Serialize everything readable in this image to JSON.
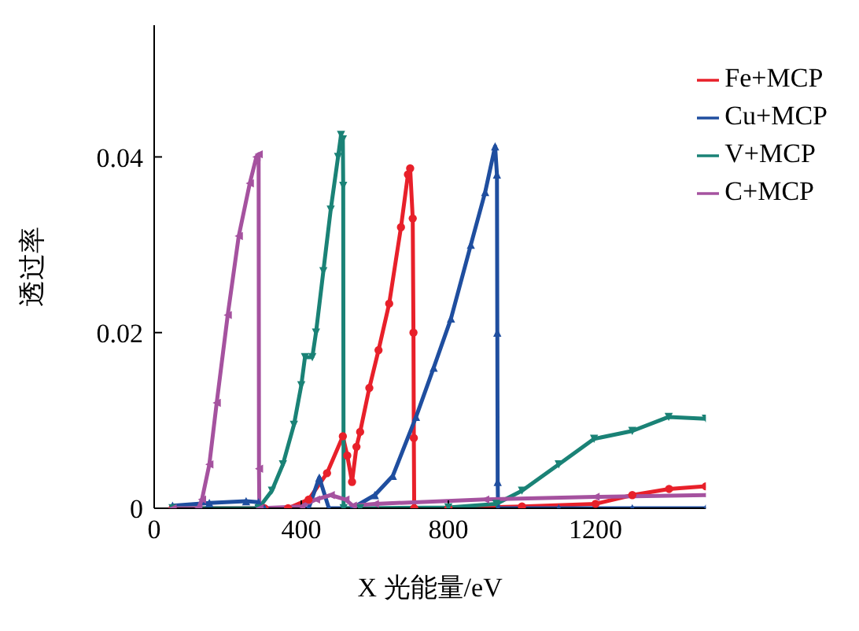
{
  "chart_data": {
    "type": "line",
    "xlabel": "X 光能量/eV",
    "ylabel": "透过率",
    "xlim": [
      0,
      1500
    ],
    "xticks": [
      0,
      400,
      800,
      1200
    ],
    "ylim": [
      0,
      0.055
    ],
    "yticks": [
      0,
      0.02,
      0.04
    ],
    "legend": "top right",
    "line_style": "solid",
    "series": [
      {
        "name": "Fe+MCP",
        "color": "#e8202a",
        "marker": "circle",
        "x": [
          50,
          300,
          364,
          420,
          470,
          513,
          525,
          538,
          550,
          560,
          585,
          610,
          639,
          671,
          690,
          696,
          703,
          705,
          706,
          707,
          800,
          1000,
          1200,
          1300,
          1400,
          1500
        ],
        "values": [
          0,
          0,
          0,
          0.001,
          0.004,
          0.0082,
          0.006,
          0.003,
          0.007,
          0.0087,
          0.0137,
          0.018,
          0.0233,
          0.032,
          0.038,
          0.0387,
          0.033,
          0.02,
          0.008,
          0,
          0,
          0.0002,
          0.0005,
          0.0015,
          0.0022,
          0.0025
        ]
      },
      {
        "name": "Cu+MCP",
        "color": "#1f4e9f",
        "marker": "triangle",
        "x": [
          50,
          150,
          250,
          284,
          300,
          420,
          449,
          475,
          538,
          600,
          649,
          712,
          760,
          807,
          861,
          900,
          927,
          932,
          933,
          934,
          935,
          1100,
          1300,
          1500
        ],
        "values": [
          0.0003,
          0.0006,
          0.0008,
          0.0007,
          0,
          0,
          0.0035,
          0,
          0,
          0.0015,
          0.0037,
          0.0104,
          0.016,
          0.0216,
          0.03,
          0.036,
          0.0412,
          0.038,
          0.02,
          0.003,
          0,
          0,
          0,
          0
        ]
      },
      {
        "name": "V+MCP",
        "color": "#1a8276",
        "marker": "triangle-down",
        "x": [
          50,
          284,
          320,
          350,
          380,
          400,
          410,
          430,
          440,
          460,
          480,
          500,
          508,
          513,
          514,
          515,
          560,
          800,
          930,
          1000,
          1100,
          1196,
          1300,
          1399,
          1500
        ],
        "values": [
          0,
          0,
          0.002,
          0.005,
          0.0095,
          0.014,
          0.0172,
          0.0172,
          0.02,
          0.027,
          0.034,
          0.04,
          0.0425,
          0.042,
          0.0367,
          0,
          0,
          0.0001,
          0.0005,
          0.002,
          0.005,
          0.0079,
          0.0088,
          0.0104,
          0.0102
        ]
      },
      {
        "name": "C+MCP",
        "color": "#a5529f",
        "marker": "triangle-left",
        "x": [
          50,
          120,
          130,
          150,
          170,
          200,
          230,
          260,
          278,
          284,
          285,
          286,
          400,
          440,
          480,
          520,
          540,
          600,
          900,
          1200,
          1500
        ],
        "values": [
          0,
          0,
          0.001,
          0.005,
          0.012,
          0.022,
          0.031,
          0.037,
          0.04,
          0.0403,
          0.0045,
          0,
          0.0002,
          0.001,
          0.0015,
          0.001,
          0.0003,
          0.0005,
          0.001,
          0.0013,
          0.0015
        ]
      }
    ]
  }
}
